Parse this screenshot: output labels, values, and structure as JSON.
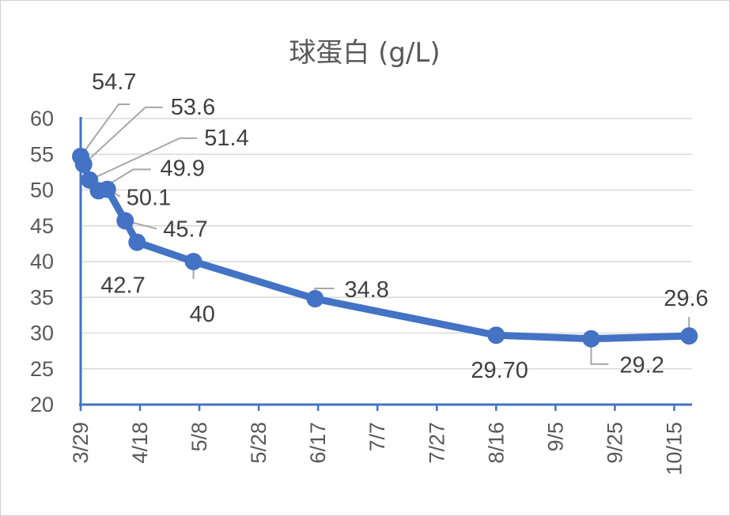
{
  "chart_data": {
    "type": "line",
    "title": "球蛋白 (g/L)",
    "xlabel": "",
    "ylabel": "",
    "ylim": [
      20,
      60
    ],
    "yticks": [
      20,
      25,
      30,
      35,
      40,
      45,
      50,
      55,
      60
    ],
    "x_tick_labels": [
      "3/29",
      "4/18",
      "5/8",
      "5/28",
      "6/17",
      "7/7",
      "7/27",
      "8/16",
      "9/5",
      "9/25",
      "10/15"
    ],
    "x_tick_days": [
      0,
      20,
      40,
      60,
      80,
      100,
      120,
      140,
      160,
      180,
      200
    ],
    "xlim_days": [
      0,
      206
    ],
    "grid": true,
    "legend": "none",
    "series": [
      {
        "color": "#4472C4",
        "points": [
          {
            "x": "3/29",
            "day": 0,
            "y": 54.7,
            "label": "54.7"
          },
          {
            "x": "3/30",
            "day": 1,
            "y": 53.6,
            "label": "53.6"
          },
          {
            "x": "4/1",
            "day": 3,
            "y": 51.4,
            "label": "51.4"
          },
          {
            "x": "4/4",
            "day": 6,
            "y": 49.9,
            "label": "49.9"
          },
          {
            "x": "4/7",
            "day": 9,
            "y": 50.1,
            "label": "50.1"
          },
          {
            "x": "4/13",
            "day": 15,
            "y": 45.7,
            "label": "45.7"
          },
          {
            "x": "4/17",
            "day": 19,
            "y": 42.7,
            "label": "42.7"
          },
          {
            "x": "5/6",
            "day": 38,
            "y": 40,
            "label": "40"
          },
          {
            "x": "6/16",
            "day": 79,
            "y": 34.8,
            "label": "34.8"
          },
          {
            "x": "8/16",
            "day": 140,
            "y": 29.7,
            "label": "29.70"
          },
          {
            "x": "9/17",
            "day": 172,
            "y": 29.2,
            "label": "29.2"
          },
          {
            "x": "10/20",
            "day": 205,
            "y": 29.6,
            "label": "29.6"
          }
        ]
      }
    ]
  }
}
